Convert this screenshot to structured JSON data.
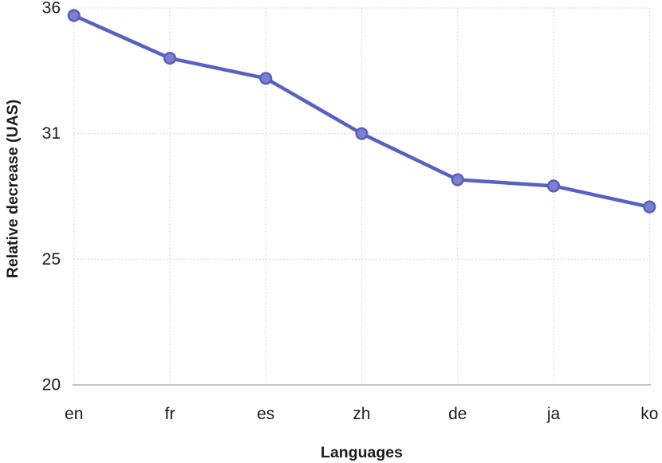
{
  "figure": {
    "xlabel": "Languages",
    "ylabel": "Relative decrease (UAS)"
  },
  "chart_data": {
    "type": "line",
    "categories": [
      "en",
      "fr",
      "es",
      "zh",
      "de",
      "ja",
      "ko"
    ],
    "values": [
      35.7,
      34.0,
      33.2,
      31.0,
      28.8,
      28.5,
      27.5
    ],
    "title": "",
    "xlabel": "Languages",
    "ylabel": "Relative decrease (UAS)",
    "yticks": [
      36,
      31,
      25,
      20
    ],
    "ylim": [
      20,
      36
    ],
    "grid": "dotted",
    "legend": "none",
    "colors": {
      "line": "#5661c2",
      "marker_fill": "#7d80d0",
      "marker_stroke": "#5a60be",
      "gridline": "#d0d0d0",
      "axis_line": "#c8c8c8",
      "text": "#1b1b1b"
    }
  }
}
